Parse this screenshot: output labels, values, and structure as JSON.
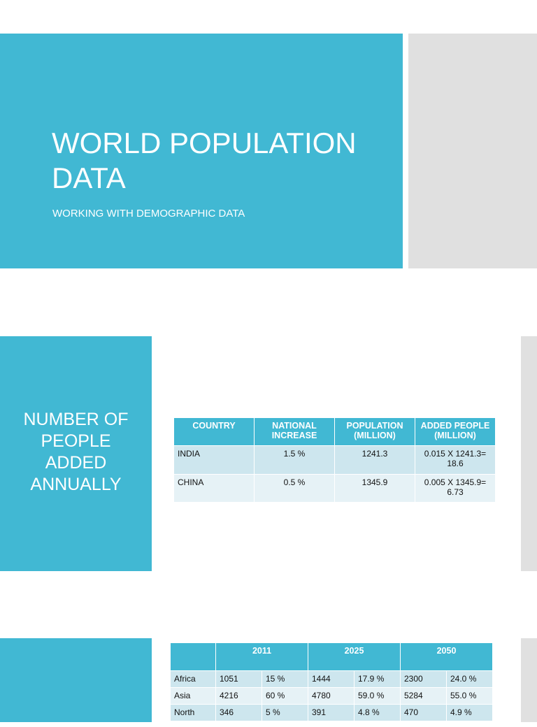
{
  "slides": [
    {
      "title": "WORLD POPULATION DATA",
      "subtitle": "WORKING WITH DEMOGRAPHIC DATA"
    },
    {
      "title": "NUMBER OF PEOPLE ADDED ANNUALLY",
      "table": {
        "header": [
          "COUNTRY",
          "NATIONAL INCREASE",
          "POPULATION (MILLION)",
          "ADDED PEOPLE (MILLION)"
        ],
        "rows": [
          [
            "INDIA",
            "1.5 %",
            "1241.3",
            "0.015 X 1241.3= 18.6"
          ],
          [
            "CHINA",
            "0.5 %",
            "1345.9",
            "0.005 X 1345.9= 6.73"
          ]
        ]
      }
    },
    {
      "table": {
        "header": [
          "2011",
          "2025",
          "2050"
        ],
        "rows": [
          [
            "Africa",
            "1051",
            "15 %",
            "1444",
            "17.9 %",
            "2300",
            "24.0 %"
          ],
          [
            "Asia",
            "4216",
            "60 %",
            "4780",
            "59.0 %",
            "5284",
            "55.0 %"
          ],
          [
            "North",
            "346",
            "5 %",
            "391",
            "4.8 %",
            "470",
            "4.9 %"
          ]
        ]
      }
    }
  ]
}
